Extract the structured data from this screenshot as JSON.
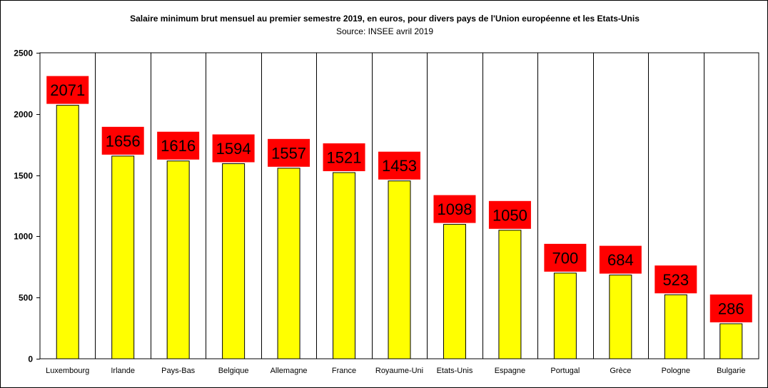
{
  "chart_data": {
    "type": "bar",
    "title": "Salaire minimum brut mensuel au premier semestre 2019, en euros, pour divers pays de l'Union européenne et les Etats-Unis",
    "subtitle": "Source: INSEE avril 2019",
    "xlabel": "",
    "ylabel": "",
    "ylim": [
      0,
      2500
    ],
    "yticks": [
      0,
      500,
      1000,
      1500,
      2000,
      2500
    ],
    "grid": "vertical category separators",
    "legend": "none",
    "categories": [
      "Luxembourg",
      "Irlande",
      "Pays-Bas",
      "Belgique",
      "Allemagne",
      "France",
      "Royaume-Uni",
      "Etats-Unis",
      "Espagne",
      "Portugal",
      "Grèce",
      "Pologne",
      "Bulgarie"
    ],
    "values": [
      2071,
      1656,
      1616,
      1594,
      1557,
      1521,
      1453,
      1098,
      1050,
      700,
      684,
      523,
      286
    ],
    "colors": {
      "bar": "#ffff00",
      "bar_stroke": "#000000",
      "label_bg": "#ff0000",
      "label_text": "#000000"
    }
  }
}
